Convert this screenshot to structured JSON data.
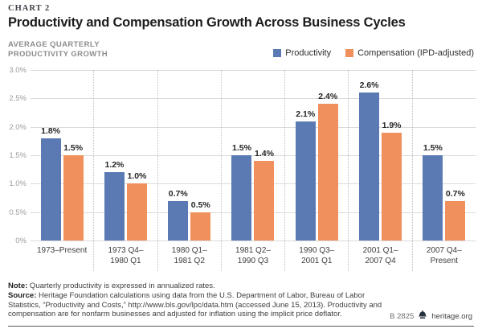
{
  "header": {
    "kicker": "CHART 2",
    "title": "Productivity and Compensation Growth Across Business Cycles",
    "y_axis_title_line1": "AVERAGE QUARTERLY",
    "y_axis_title_line2": "PRODUCTIVITY GROWTH"
  },
  "colors": {
    "productivity": "#5b7ab3",
    "compensation": "#f0905d",
    "gridline": "#dadada",
    "separator": "#bdbdbd"
  },
  "chart_data": {
    "type": "bar",
    "title": "Productivity and Compensation Growth Across Business Cycles",
    "xlabel": "",
    "ylabel": "AVERAGE QUARTERLY PRODUCTIVITY GROWTH",
    "ylim": [
      0,
      3.0
    ],
    "yticks": [
      "3.0%",
      "2.5%",
      "2.0%",
      "1.5%",
      "1.0%",
      "0.5%",
      "0%"
    ],
    "grid": "horizontal solid, dotted vertical group separators",
    "legend_position": "top-right",
    "categories": [
      {
        "line1": "1973–Present",
        "line2": ""
      },
      {
        "line1": "1973 Q4–",
        "line2": "1980 Q1"
      },
      {
        "line1": "1980 Q1–",
        "line2": "1981 Q2"
      },
      {
        "line1": "1981 Q2–",
        "line2": "1990 Q3"
      },
      {
        "line1": "1990 Q3–",
        "line2": "2001 Q1"
      },
      {
        "line1": "2001 Q1–",
        "line2": "2007 Q4"
      },
      {
        "line1": "2007 Q4–",
        "line2": "Present"
      }
    ],
    "series": [
      {
        "name": "Productivity",
        "color": "#5b7ab3",
        "values": [
          1.8,
          1.2,
          0.7,
          1.5,
          2.1,
          2.6,
          1.5
        ],
        "labels": [
          "1.8%",
          "1.2%",
          "0.7%",
          "1.5%",
          "2.1%",
          "2.6%",
          "1.5%"
        ]
      },
      {
        "name": "Compensation (IPD-adjusted)",
        "color": "#f0905d",
        "values": [
          1.5,
          1.0,
          0.5,
          1.4,
          2.4,
          1.9,
          0.7
        ],
        "labels": [
          "1.5%",
          "1.0%",
          "0.5%",
          "1.4%",
          "2.4%",
          "1.9%",
          "0.7%"
        ]
      }
    ]
  },
  "footer": {
    "note_label": "Note:",
    "note_text": " Quarterly productivity is expressed in annualized rates.",
    "source_label": "Source:",
    "source_text": " Heritage Foundation calculations using data from the U.S. Department of Labor, Bureau of Labor Statistics, “Productivity and Costs,” http://www.bls.gov/lpc/data.htm (accessed June 15, 2013). Productivity and compensation are for nonfarm businesses and adjusted for inflation using the implicit price deflator.",
    "chart_id": "B 2825",
    "site": "heritage.org"
  }
}
